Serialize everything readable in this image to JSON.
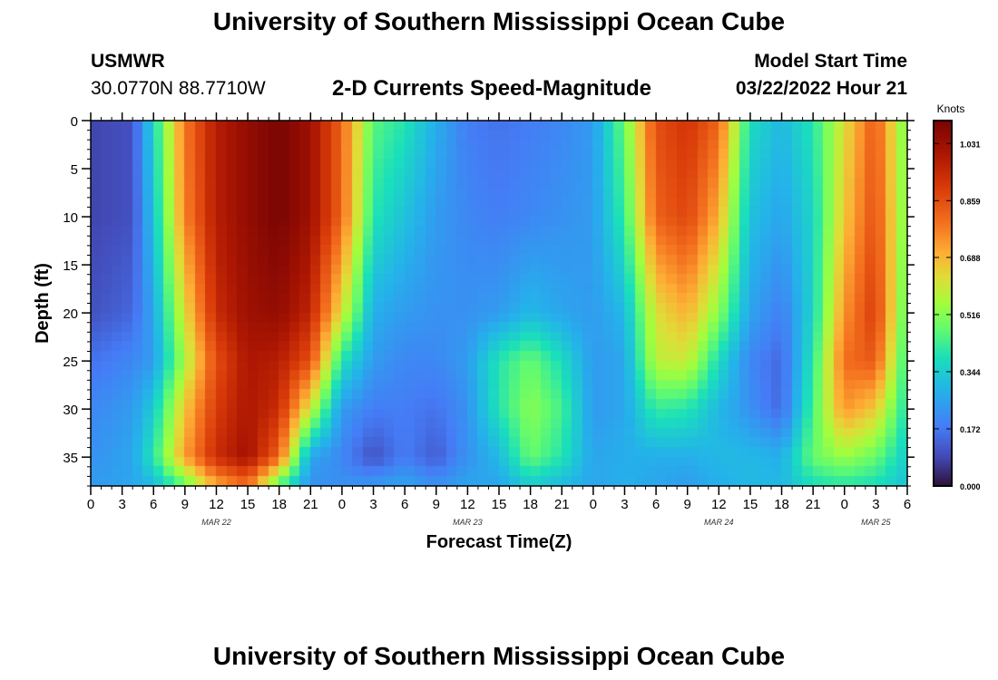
{
  "header": {
    "title": "University of Southern Mississippi Ocean Cube",
    "station": "USMWR",
    "coordinates": "30.0770N  88.7710W",
    "subtitle": "2-D Currents Speed-Magnitude",
    "model_start_label": "Model Start Time",
    "model_start_value": "03/22/2022 Hour 21"
  },
  "footer": {
    "title": "University of Southern Mississippi Ocean Cube"
  },
  "chart_data": {
    "type": "heatmap",
    "title": "2-D Currents Speed-Magnitude",
    "xlabel": "Forecast Time(Z)",
    "ylabel": "Depth (ft)",
    "x_tick_labels": [
      "0",
      "3",
      "6",
      "9",
      "12",
      "15",
      "18",
      "21",
      "0",
      "3",
      "6",
      "9",
      "12",
      "15",
      "18",
      "21",
      "0",
      "3",
      "6",
      "9",
      "12",
      "15",
      "18",
      "21",
      "0",
      "3",
      "6"
    ],
    "date_labels": [
      "MAR 22",
      "MAR 23",
      "MAR 24",
      "MAR 25"
    ],
    "date_label_hours": [
      12,
      36,
      60,
      75
    ],
    "x_range_hours": [
      0,
      78
    ],
    "y_ticks": [
      0,
      5,
      10,
      15,
      20,
      25,
      30,
      35
    ],
    "y_range": [
      0,
      38
    ],
    "y_inverted": true,
    "colorbar": {
      "label": "Knots",
      "ticks": [
        "0.000",
        "0.172",
        "0.344",
        "0.516",
        "0.688",
        "0.859",
        "1.031"
      ],
      "range": [
        0,
        1.1
      ],
      "colormap": "turbo"
    },
    "field": {
      "x_nodes_hours": [
        0,
        4,
        6,
        9,
        12,
        15,
        18,
        21,
        24,
        27,
        30,
        33,
        36,
        39,
        42,
        45,
        48,
        51,
        54,
        57,
        60,
        63,
        66,
        69,
        72,
        75,
        78
      ],
      "depth_nodes_ft": [
        0,
        10,
        20,
        25,
        30,
        35,
        38
      ],
      "speed_knots": [
        [
          0.08,
          0.08,
          0.1,
          0.16,
          0.2,
          0.22,
          0.24
        ],
        [
          0.1,
          0.1,
          0.14,
          0.2,
          0.24,
          0.26,
          0.26
        ],
        [
          0.36,
          0.32,
          0.26,
          0.24,
          0.34,
          0.4,
          0.3
        ],
        [
          0.78,
          0.76,
          0.62,
          0.55,
          0.66,
          0.72,
          0.46
        ],
        [
          0.98,
          0.98,
          0.94,
          0.86,
          0.9,
          0.94,
          0.7
        ],
        [
          1.05,
          1.05,
          1.03,
          1.0,
          1.0,
          1.02,
          0.8
        ],
        [
          1.1,
          1.1,
          1.05,
          0.98,
          0.94,
          0.82,
          0.44
        ],
        [
          1.03,
          1.03,
          0.96,
          0.86,
          0.6,
          0.26,
          0.22
        ],
        [
          0.82,
          0.82,
          0.62,
          0.4,
          0.24,
          0.2,
          0.22
        ],
        [
          0.46,
          0.4,
          0.28,
          0.24,
          0.18,
          0.1,
          0.24
        ],
        [
          0.4,
          0.32,
          0.24,
          0.2,
          0.18,
          0.18,
          0.26
        ],
        [
          0.28,
          0.24,
          0.22,
          0.2,
          0.16,
          0.12,
          0.22
        ],
        [
          0.18,
          0.2,
          0.22,
          0.24,
          0.22,
          0.22,
          0.26
        ],
        [
          0.16,
          0.18,
          0.24,
          0.4,
          0.4,
          0.3,
          0.26
        ],
        [
          0.18,
          0.2,
          0.3,
          0.48,
          0.52,
          0.48,
          0.34
        ],
        [
          0.2,
          0.22,
          0.26,
          0.38,
          0.44,
          0.4,
          0.3
        ],
        [
          0.24,
          0.24,
          0.24,
          0.24,
          0.24,
          0.26,
          0.26
        ],
        [
          0.48,
          0.42,
          0.3,
          0.26,
          0.26,
          0.28,
          0.28
        ],
        [
          0.86,
          0.82,
          0.62,
          0.58,
          0.42,
          0.28,
          0.26
        ],
        [
          0.92,
          0.88,
          0.7,
          0.6,
          0.4,
          0.28,
          0.24
        ],
        [
          0.82,
          0.7,
          0.52,
          0.38,
          0.3,
          0.3,
          0.28
        ],
        [
          0.38,
          0.32,
          0.26,
          0.2,
          0.22,
          0.3,
          0.3
        ],
        [
          0.3,
          0.26,
          0.18,
          0.14,
          0.14,
          0.28,
          0.3
        ],
        [
          0.4,
          0.36,
          0.36,
          0.4,
          0.44,
          0.48,
          0.38
        ],
        [
          0.62,
          0.66,
          0.74,
          0.8,
          0.74,
          0.54,
          0.4
        ],
        [
          0.84,
          0.86,
          0.9,
          0.84,
          0.66,
          0.48,
          0.38
        ],
        [
          0.48,
          0.48,
          0.44,
          0.4,
          0.38,
          0.34,
          0.32
        ]
      ]
    }
  }
}
